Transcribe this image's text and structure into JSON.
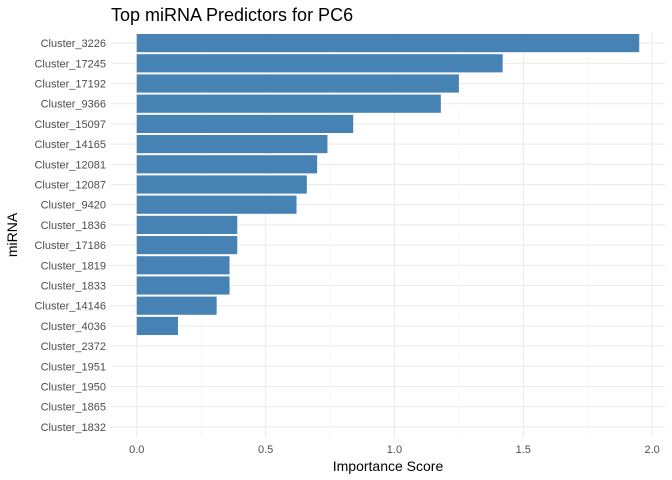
{
  "chart_data": {
    "type": "bar",
    "orientation": "horizontal",
    "title": "Top miRNA Predictors for PC6",
    "xlabel": "Importance Score",
    "ylabel": "miRNA",
    "xlim": [
      -0.1,
      2.05
    ],
    "xticks": [
      0.0,
      0.5,
      1.0,
      1.5,
      2.0
    ],
    "xtick_labels": [
      "0.0",
      "0.5",
      "1.0",
      "1.5",
      "2.0"
    ],
    "grid": true,
    "bar_color": "#4682B4",
    "categories": [
      "Cluster_3226",
      "Cluster_17245",
      "Cluster_17192",
      "Cluster_9366",
      "Cluster_15097",
      "Cluster_14165",
      "Cluster_12081",
      "Cluster_12087",
      "Cluster_9420",
      "Cluster_1836",
      "Cluster_17186",
      "Cluster_1819",
      "Cluster_1833",
      "Cluster_14146",
      "Cluster_4036",
      "Cluster_2372",
      "Cluster_1951",
      "Cluster_1950",
      "Cluster_1865",
      "Cluster_1832"
    ],
    "values": [
      1.95,
      1.42,
      1.25,
      1.18,
      0.84,
      0.74,
      0.7,
      0.66,
      0.62,
      0.39,
      0.39,
      0.36,
      0.36,
      0.31,
      0.16,
      0.0,
      0.0,
      0.0,
      0.0,
      0.0
    ]
  }
}
